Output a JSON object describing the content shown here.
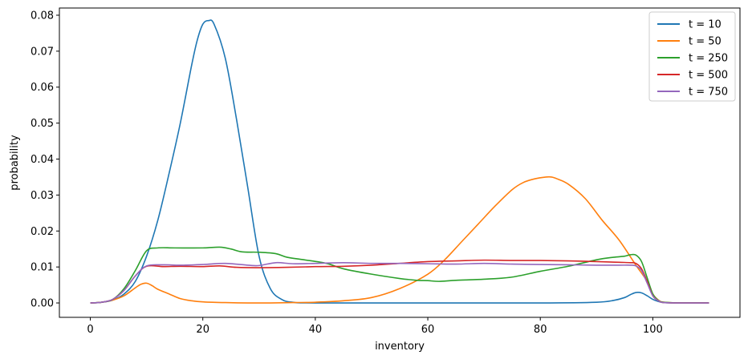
{
  "chart_data": {
    "type": "line",
    "xlabel": "inventory",
    "ylabel": "probability",
    "xlim": [
      -5.5,
      115.5
    ],
    "ylim": [
      -0.004,
      0.082
    ],
    "xticks": [
      0,
      20,
      40,
      60,
      80,
      100
    ],
    "yticks": [
      0.0,
      0.01,
      0.02,
      0.03,
      0.04,
      0.05,
      0.06,
      0.07,
      0.08
    ],
    "ytick_labels": [
      "0.00",
      "0.01",
      "0.02",
      "0.03",
      "0.04",
      "0.05",
      "0.06",
      "0.07",
      "0.08"
    ],
    "grid": false,
    "legend_position": "top-right",
    "series": [
      {
        "name": "t = 10",
        "color": "#1f77b4",
        "x": [
          0,
          2,
          4,
          6,
          8,
          10,
          12,
          14,
          16,
          18,
          19,
          20,
          21,
          22,
          24,
          26,
          28,
          30,
          32,
          34,
          36,
          40,
          60,
          80,
          90,
          93,
          95,
          96,
          97,
          98,
          99,
          100,
          101,
          102,
          105,
          110
        ],
        "y": [
          0,
          0.0002,
          0.0008,
          0.0025,
          0.006,
          0.013,
          0.023,
          0.036,
          0.05,
          0.066,
          0.073,
          0.0775,
          0.0785,
          0.0775,
          0.068,
          0.051,
          0.032,
          0.013,
          0.004,
          0.001,
          0.0002,
          0,
          0,
          0,
          0.0002,
          0.0007,
          0.0015,
          0.0023,
          0.0029,
          0.0028,
          0.002,
          0.001,
          0.0004,
          0.0001,
          0,
          0
        ]
      },
      {
        "name": "t = 50",
        "color": "#ff7f0e",
        "x": [
          0,
          2,
          4,
          6,
          8,
          9,
          10,
          11,
          12,
          14,
          16,
          18,
          20,
          24,
          28,
          32,
          36,
          40,
          45,
          50,
          55,
          60,
          63,
          66,
          69,
          72,
          75,
          77,
          79,
          81,
          82,
          83,
          85,
          88,
          91,
          94,
          97,
          99,
          100,
          101,
          102,
          105,
          110
        ],
        "y": [
          0,
          0.0002,
          0.0008,
          0.002,
          0.0042,
          0.0052,
          0.0055,
          0.0048,
          0.0038,
          0.0025,
          0.0012,
          0.0006,
          0.0003,
          0.0001,
          0,
          0,
          0.0001,
          0.0002,
          0.0006,
          0.0015,
          0.004,
          0.008,
          0.012,
          0.017,
          0.022,
          0.027,
          0.0315,
          0.0335,
          0.0345,
          0.035,
          0.035,
          0.0345,
          0.033,
          0.029,
          0.023,
          0.0175,
          0.0105,
          0.006,
          0.0025,
          0.0008,
          0.0002,
          0,
          0
        ]
      },
      {
        "name": "t = 250",
        "color": "#2ca02c",
        "x": [
          0,
          2,
          4,
          6,
          8,
          10,
          12,
          15,
          20,
          23,
          25,
          27,
          30,
          33,
          35,
          38,
          42,
          45,
          50,
          55,
          58,
          60,
          62,
          65,
          70,
          75,
          80,
          85,
          90,
          93,
          95,
          96,
          97,
          98,
          99,
          100,
          101,
          102,
          105,
          110
        ],
        "y": [
          0,
          0.0002,
          0.001,
          0.004,
          0.009,
          0.0145,
          0.0153,
          0.0153,
          0.0153,
          0.0155,
          0.015,
          0.0142,
          0.0141,
          0.0137,
          0.0127,
          0.012,
          0.011,
          0.0095,
          0.008,
          0.0068,
          0.0063,
          0.0062,
          0.006,
          0.0063,
          0.0066,
          0.0072,
          0.0088,
          0.0102,
          0.012,
          0.0127,
          0.013,
          0.0134,
          0.0133,
          0.0115,
          0.007,
          0.0025,
          0.0007,
          0.0002,
          0,
          0
        ]
      },
      {
        "name": "t = 500",
        "color": "#d62728",
        "x": [
          0,
          2,
          4,
          6,
          8,
          10,
          13,
          16,
          20,
          23,
          26,
          30,
          35,
          40,
          45,
          50,
          55,
          60,
          65,
          70,
          75,
          80,
          85,
          90,
          94,
          96,
          97,
          98,
          99,
          100,
          101,
          102,
          105,
          110
        ],
        "y": [
          0,
          0.0002,
          0.001,
          0.0035,
          0.0075,
          0.0102,
          0.0101,
          0.0102,
          0.0101,
          0.0103,
          0.0099,
          0.0098,
          0.0099,
          0.0101,
          0.0102,
          0.0105,
          0.011,
          0.0115,
          0.0117,
          0.0119,
          0.0118,
          0.0118,
          0.0117,
          0.0115,
          0.0113,
          0.0112,
          0.011,
          0.0095,
          0.006,
          0.002,
          0.0006,
          0.0001,
          0,
          0
        ]
      },
      {
        "name": "t = 750",
        "color": "#9467bd",
        "x": [
          0,
          2,
          4,
          6,
          8,
          10,
          13,
          16,
          20,
          24,
          28,
          30,
          33,
          36,
          40,
          45,
          50,
          55,
          60,
          65,
          70,
          75,
          80,
          85,
          90,
          94,
          96,
          97,
          98,
          99,
          100,
          101,
          102,
          105,
          110
        ],
        "y": [
          0,
          0.0002,
          0.001,
          0.0035,
          0.0075,
          0.0103,
          0.0106,
          0.0105,
          0.0107,
          0.011,
          0.0105,
          0.0104,
          0.0112,
          0.0109,
          0.011,
          0.0112,
          0.011,
          0.011,
          0.0109,
          0.0108,
          0.011,
          0.0108,
          0.0107,
          0.0106,
          0.0105,
          0.0105,
          0.0105,
          0.0103,
          0.009,
          0.0055,
          0.002,
          0.0006,
          0.0001,
          0,
          0
        ]
      }
    ]
  }
}
